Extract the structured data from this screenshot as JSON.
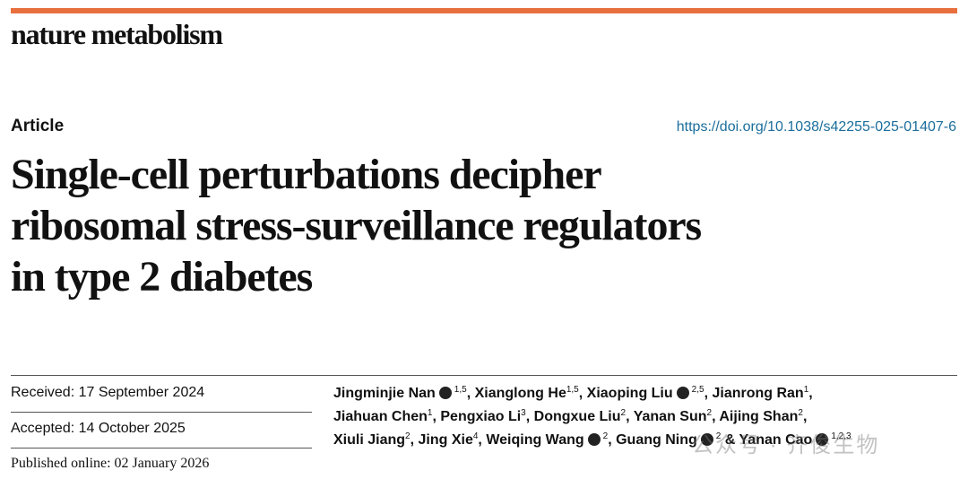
{
  "header": {
    "journal": "nature metabolism",
    "article_type": "Article",
    "doi": "https://doi.org/10.1038/s42255-025-01407-6"
  },
  "title_lines": [
    "Single-cell perturbations decipher",
    "ribosomal stress-surveillance regulators",
    "in type 2 diabetes"
  ],
  "dates": {
    "received": "Received: 17 September 2024",
    "accepted": "Accepted: 14 October 2025",
    "published": "Published online: 02 January 2026"
  },
  "author_lines": [
    [
      {
        "name": "Jingminjie Nan",
        "orcid": true,
        "sup": "1,5",
        "after": ","
      },
      {
        "name": "Xianglong He",
        "orcid": false,
        "sup": "1,5",
        "after": ","
      },
      {
        "name": "Xiaoping Liu",
        "orcid": true,
        "sup": "2,5",
        "after": ","
      },
      {
        "name": "Jianrong Ran",
        "orcid": false,
        "sup": "1",
        "after": ","
      }
    ],
    [
      {
        "name": "Jiahuan Chen",
        "orcid": false,
        "sup": "1",
        "after": ","
      },
      {
        "name": "Pengxiao Li",
        "orcid": false,
        "sup": "3",
        "after": ","
      },
      {
        "name": "Dongxue Liu",
        "orcid": false,
        "sup": "2",
        "after": ","
      },
      {
        "name": "Yanan Sun",
        "orcid": false,
        "sup": "2",
        "after": ","
      },
      {
        "name": "Aijing Shan",
        "orcid": false,
        "sup": "2",
        "after": ","
      }
    ],
    [
      {
        "name": "Xiuli Jiang",
        "orcid": false,
        "sup": "2",
        "after": ","
      },
      {
        "name": "Jing Xie",
        "orcid": false,
        "sup": "4",
        "after": ","
      },
      {
        "name": "Weiqing Wang",
        "orcid": true,
        "sup": "2",
        "after": ","
      },
      {
        "name": "Guang Ning",
        "orcid": true,
        "sup": "2",
        "after": "&"
      },
      {
        "name": "Yanan Cao",
        "orcid": true,
        "sup": "1,2,3"
      }
    ]
  ],
  "watermark": "公众号 · 齐俊生物"
}
